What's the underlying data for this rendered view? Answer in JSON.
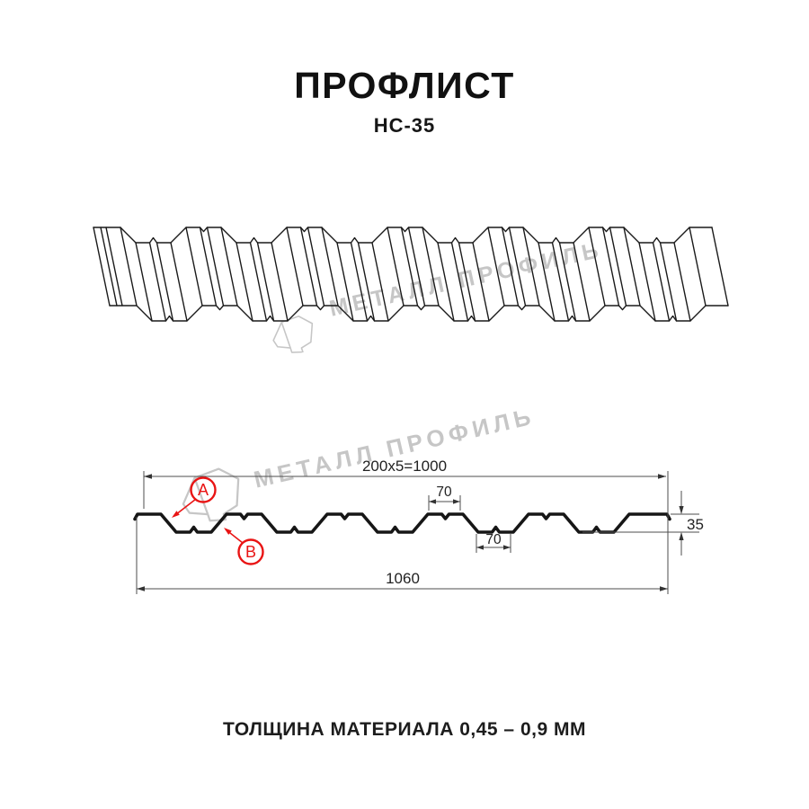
{
  "title": "ПРОФЛИСТ",
  "subtitle": "НС-35",
  "watermark": {
    "brand": "МЕТАЛЛ ПРОФИЛЬ"
  },
  "diagram": {
    "dim_top_width": "200x5=1000",
    "dim_crest_width": "70",
    "dim_valley_width": "70",
    "dim_height": "35",
    "dim_total_width": "1060",
    "callout_a": "A",
    "callout_b": "B"
  },
  "footer": {
    "thickness_note": "ТОЛЩИНА МАТЕРИАЛА 0,45 – 0,9 ММ"
  },
  "colors": {
    "accent_red": "#e91414",
    "drawing_line": "#1a1a1a",
    "watermark_gray": "#c6c6c6"
  }
}
